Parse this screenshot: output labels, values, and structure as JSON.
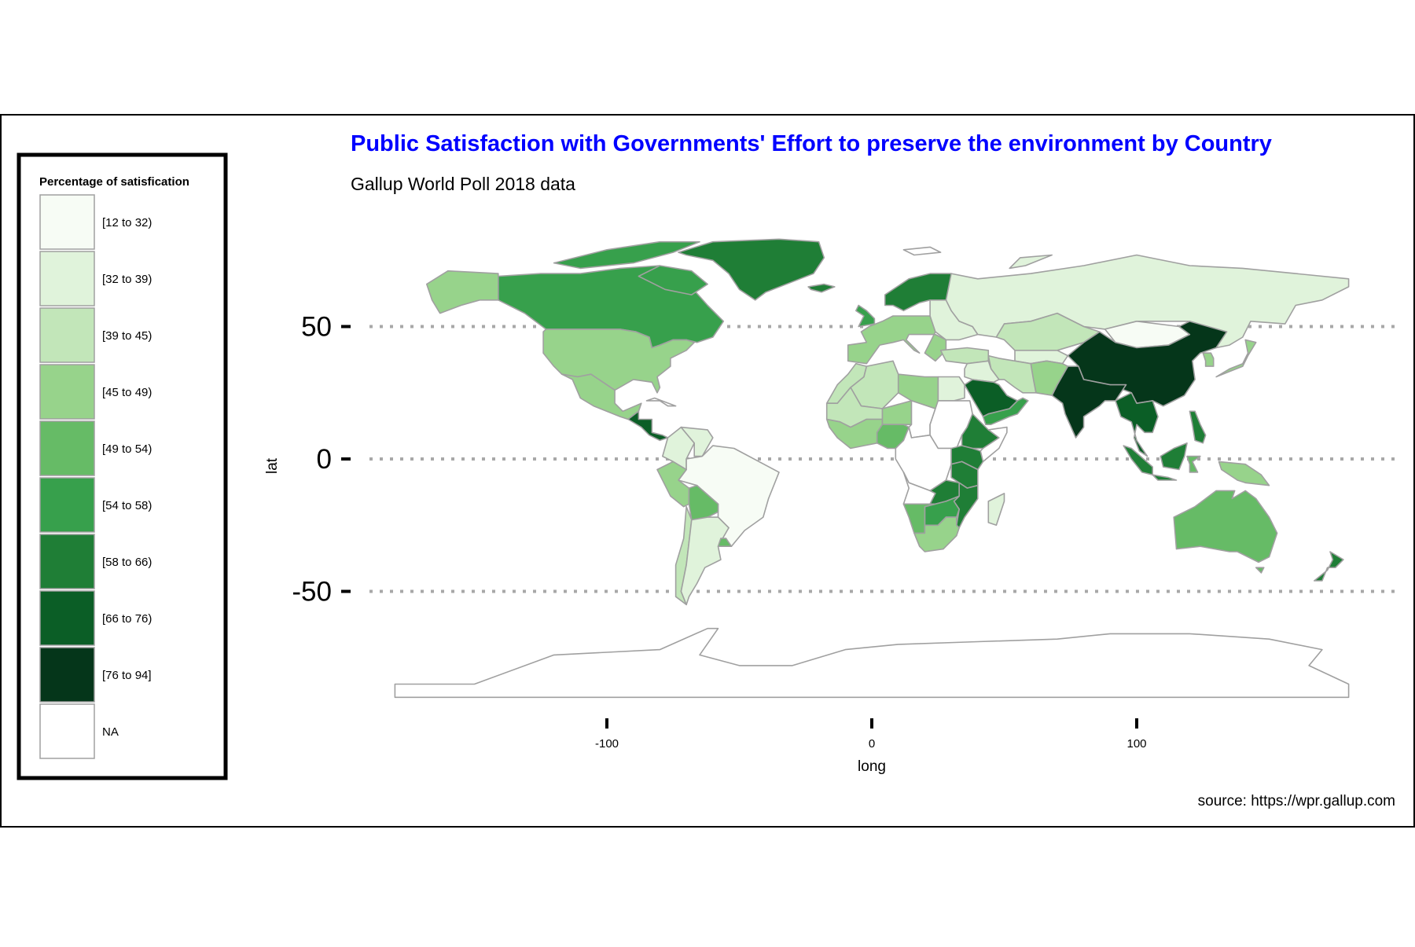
{
  "title": "Public Satisfaction with Governments' Effort to preserve the environment by Country",
  "subtitle": "Gallup World Poll 2018 data",
  "caption": "source: https://wpr.gallup.com",
  "colors": {
    "title": "#0000ff",
    "country_border": "#a0a0a0",
    "gridline": "#a8a8a8",
    "frame": "#000000"
  },
  "axes": {
    "x": {
      "label": "long",
      "ticks": [
        "-100",
        "0",
        "100"
      ],
      "tick_values": [
        -100,
        0,
        100
      ],
      "range": [
        -180,
        180
      ]
    },
    "y": {
      "label": "lat",
      "ticks": [
        "50",
        "0",
        "-50"
      ],
      "tick_values": [
        50,
        0,
        -50
      ],
      "range": [
        -90,
        84
      ]
    }
  },
  "legend": {
    "title": "Percentage of satisfication",
    "position": "left",
    "items": [
      {
        "label": "[12 to 32)",
        "color": "#f7fcf5"
      },
      {
        "label": "[32 to 39)",
        "color": "#e0f3db"
      },
      {
        "label": "[39 to 45)",
        "color": "#c2e6b9"
      },
      {
        "label": "[45 to 49)",
        "color": "#97d38b"
      },
      {
        "label": "[49 to 54)",
        "color": "#66bb66"
      },
      {
        "label": "[54 to 58)",
        "color": "#37a04c"
      },
      {
        "label": "[58 to 66)",
        "color": "#1f7e36"
      },
      {
        "label": "[66 to 76)",
        "color": "#0b5e26"
      },
      {
        "label": "[76 to 94]",
        "color": "#05361a"
      },
      {
        "label": "NA",
        "color": "#ffffff"
      }
    ]
  },
  "chart_data": {
    "type": "map",
    "projection": "equirectangular",
    "fill_by_bin": {
      "Greenland": "[58 to 66)",
      "Canada": "[54 to 58)",
      "Alaska (USA)": "[45 to 49)",
      "United States": "[45 to 49)",
      "Mexico": "[45 to 49)",
      "Brazil": "[12 to 32)",
      "Colombia": "[32 to 39)",
      "Venezuela": "[32 to 39)",
      "Peru": "[45 to 49)",
      "Bolivia": "[49 to 54)",
      "Argentina": "[32 to 39)",
      "Chile": "[39 to 45)",
      "Uruguay": "[49 to 54)",
      "Russia": "[32 to 39)",
      "China": "[76 to 94]",
      "India": "[76 to 94]",
      "Kazakhstan": "[39 to 45)",
      "Mongolia": "[12 to 32)",
      "Japan": "[45 to 49)",
      "Indonesia": "[58 to 66)",
      "Australia": "[49 to 54)",
      "New Zealand": "[58 to 66)",
      "Saudi Arabia": "[66 to 76)",
      "Iran": "[39 to 45)",
      "Egypt": "[32 to 39)",
      "Algeria": "[39 to 45)",
      "Libya": "[45 to 49)",
      "Niger": "[45 to 49)",
      "Nigeria": "[49 to 54)",
      "Ethiopia": "[58 to 66)",
      "Tanzania": "[58 to 66)",
      "Zambia": "[58 to 66)",
      "Mozambique": "[58 to 66)",
      "South Africa": "[45 to 49)",
      "Namibia": "[49 to 54)",
      "Scandinavia": "[58 to 66)",
      "Central Africa": "NA",
      "Antarctica": "NA"
    }
  }
}
